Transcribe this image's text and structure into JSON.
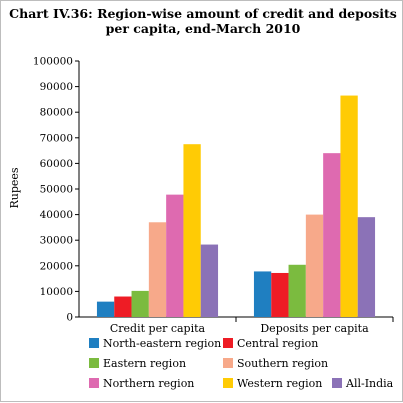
{
  "chart_data": {
    "type": "bar",
    "title": [
      "Chart IV.36: Region-wise amount of credit and deposits",
      "per capita, end-March 2010"
    ],
    "ylabel": "Rupees",
    "xlabel": "",
    "ylim": [
      0,
      100000
    ],
    "yticks": [
      "0",
      "10000",
      "20000",
      "30000",
      "40000",
      "50000",
      "60000",
      "70000",
      "80000",
      "90000",
      "100000"
    ],
    "grid": false,
    "legend_position": "bottom",
    "categories": [
      "Credit per capita",
      "Deposits per capita"
    ],
    "series": [
      {
        "name": "North-eastern region",
        "color": "#1f7fc1",
        "values": [
          6000,
          17800
        ]
      },
      {
        "name": "Central region",
        "color": "#ee1c25",
        "values": [
          8000,
          17200
        ]
      },
      {
        "name": "Eastern region",
        "color": "#7bbb3f",
        "values": [
          10200,
          20400
        ]
      },
      {
        "name": "Southern region",
        "color": "#f7a98a",
        "values": [
          37000,
          40000
        ]
      },
      {
        "name": "Northern region",
        "color": "#de6ab0",
        "values": [
          47800,
          64000
        ]
      },
      {
        "name": "Western region",
        "color": "#ffcb05",
        "values": [
          67500,
          86500
        ]
      },
      {
        "name": "All-India",
        "color": "#8b72b7",
        "values": [
          28300,
          39000
        ]
      }
    ]
  }
}
